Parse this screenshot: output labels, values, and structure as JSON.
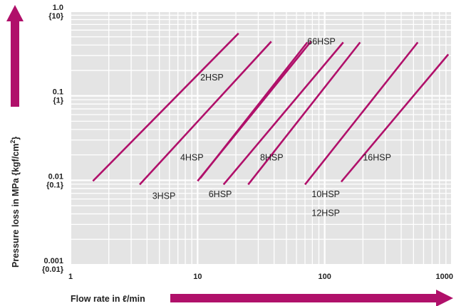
{
  "chart_data": {
    "type": "line",
    "xscale": "log",
    "yscale": "log",
    "xlim": [
      1,
      1000
    ],
    "ylim": [
      0.001,
      1.0
    ],
    "grid": true,
    "legend": "none",
    "xlabel_prefix": "Flow rate in ",
    "xlabel_unit": "ℓ/min",
    "ylabel_main": "Pressure loss in MPa {kgf/cm",
    "ylabel_sup": "2",
    "ylabel_end": "}",
    "xticks": [
      {
        "value": 1,
        "label": "1"
      },
      {
        "value": 10,
        "label": "10"
      },
      {
        "value": 100,
        "label": "100"
      },
      {
        "value": 1000,
        "label": "1000"
      }
    ],
    "yticks": [
      {
        "value": 1.0,
        "label": "1.0",
        "sublabel": "{10}"
      },
      {
        "value": 0.1,
        "label": "0.1",
        "sublabel": "{1}"
      },
      {
        "value": 0.01,
        "label": "0.01",
        "sublabel": "{0.1}"
      },
      {
        "value": 0.001,
        "label": "0.001",
        "sublabel": "{0.01}"
      }
    ],
    "line_color": "#b0106a",
    "arrow_color": "#b0106a",
    "series": [
      {
        "id": "2hsp",
        "x": [
          1.5,
          21
        ],
        "y": [
          0.0098,
          0.55
        ]
      },
      {
        "id": "3hsp",
        "x": [
          3.5,
          38
        ],
        "y": [
          0.0089,
          0.44
        ]
      },
      {
        "id": "4hsp",
        "x": [
          10,
          78
        ],
        "y": [
          0.0098,
          0.44
        ]
      },
      {
        "id": "6hsp",
        "x": [
          10.5,
          73
        ],
        "y": [
          0.0106,
          0.43
        ]
      },
      {
        "id": "66hsp",
        "x": [
          16,
          140
        ],
        "y": [
          0.0089,
          0.43
        ]
      },
      {
        "id": "8hsp",
        "x": [
          25,
          190
        ],
        "y": [
          0.0089,
          0.43
        ]
      },
      {
        "id": "10hsp",
        "x": [
          70,
          540
        ],
        "y": [
          0.0089,
          0.43
        ]
      },
      {
        "id": "16hsp",
        "x": [
          135,
          940
        ],
        "y": [
          0.0096,
          0.31
        ]
      }
    ],
    "labels": [
      {
        "text": "2HSP",
        "x": 10.5,
        "y": 0.165
      },
      {
        "text": "3HSP",
        "x": 4.4,
        "y": 0.0065
      },
      {
        "text": "4HSP",
        "x": 7.3,
        "y": 0.0185
      },
      {
        "text": "6HSP",
        "x": 12.2,
        "y": 0.0068
      },
      {
        "text": "66HSP",
        "x": 73,
        "y": 0.44
      },
      {
        "text": "8HSP",
        "x": 31,
        "y": 0.0185
      },
      {
        "text": "10HSP",
        "x": 79,
        "y": 0.0068
      },
      {
        "text": "12HSP",
        "x": 79,
        "y": 0.0041
      },
      {
        "text": "16HSP",
        "x": 200,
        "y": 0.0185
      }
    ]
  }
}
